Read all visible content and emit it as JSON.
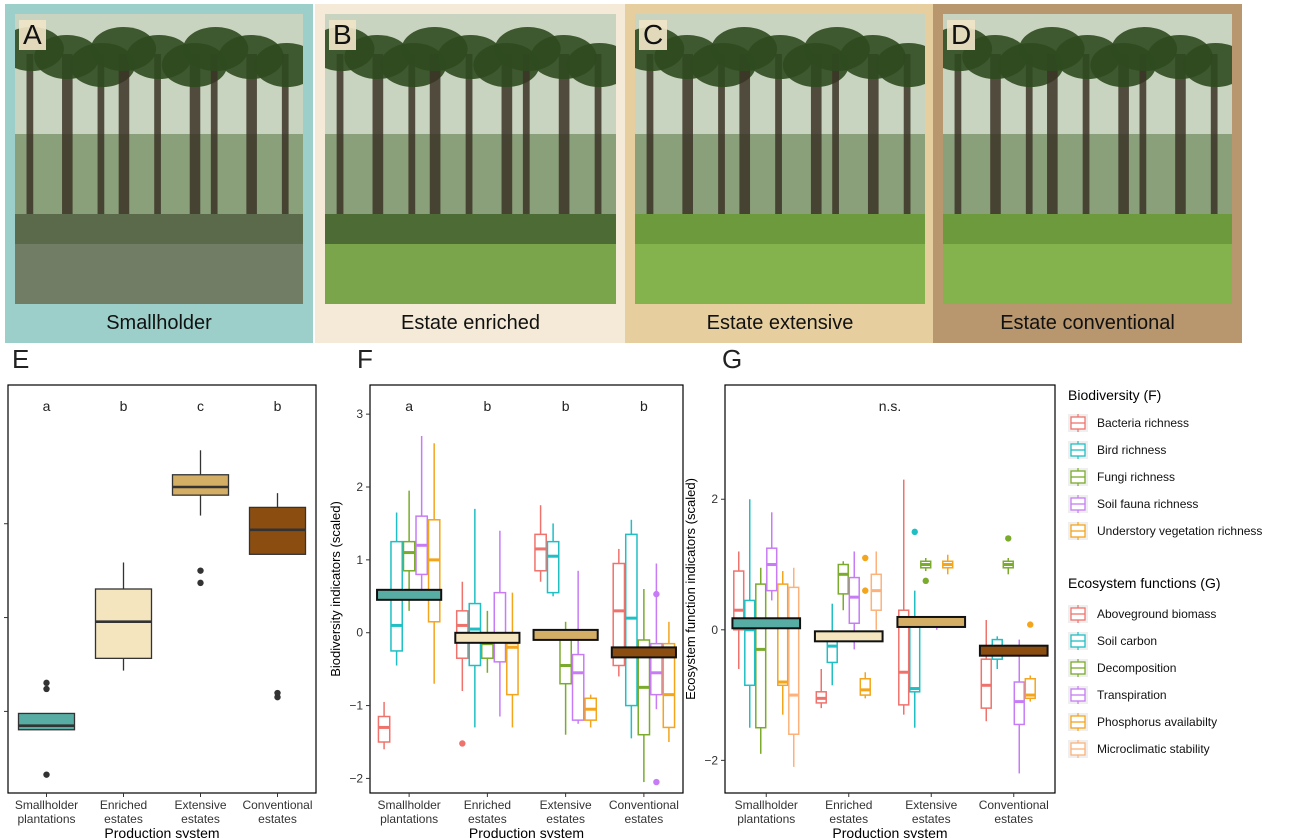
{
  "photos": [
    {
      "letter": "A",
      "caption": "Smallholder",
      "frame": "#9dcfca",
      "tone": "water"
    },
    {
      "letter": "B",
      "caption": "Estate enriched",
      "frame": "#f4ead7",
      "tone": "forest"
    },
    {
      "letter": "C",
      "caption": "Estate extensive",
      "frame": "#e6ce9f",
      "tone": "grass"
    },
    {
      "letter": "D",
      "caption": "Estate conventional",
      "frame": "#b8966e",
      "tone": "grass"
    }
  ],
  "chart_data": [
    {
      "type": "box",
      "panel": "E",
      "title": "",
      "xlabel": "Production system",
      "ylabel": "",
      "ylim": [
        0,
        10
      ],
      "categories": [
        "Smallholder\nplantations",
        "Enriched\nestates",
        "Extensive\nestates",
        "Conventional\nestates"
      ],
      "significance": [
        "a",
        "b",
        "c",
        "b"
      ],
      "boxes": [
        {
          "low": 1.55,
          "q1": 1.55,
          "median": 1.65,
          "q3": 1.95,
          "high": 1.95,
          "outliers": [
            0.45,
            2.55,
            2.7
          ],
          "color": "#57aca3"
        },
        {
          "low": 3.0,
          "q1": 3.3,
          "median": 4.2,
          "q3": 5.0,
          "high": 5.65,
          "outliers": [],
          "color": "#f4e5bf"
        },
        {
          "low": 6.8,
          "q1": 7.3,
          "median": 7.5,
          "q3": 7.8,
          "high": 8.4,
          "outliers": [
            5.15,
            5.45
          ],
          "color": "#d4ae64"
        },
        {
          "low": 5.85,
          "q1": 5.85,
          "median": 6.45,
          "q3": 7.0,
          "high": 7.35,
          "outliers": [
            2.35,
            2.45
          ],
          "color": "#8b4e10"
        }
      ]
    },
    {
      "type": "box",
      "panel": "F",
      "title": "",
      "xlabel": "Production system",
      "ylabel": "Biodiversity indicators (scaled)",
      "ylim": [
        -2.2,
        3.4
      ],
      "yticks": [
        -2,
        -1,
        0,
        1,
        2,
        3
      ],
      "categories": [
        "Smallholder\nplantations",
        "Enriched\nestates",
        "Extensive\nestates",
        "Conventional\nestates"
      ],
      "significance": [
        "a",
        "b",
        "b",
        "b"
      ],
      "means": [
        0.52,
        -0.07,
        -0.03,
        -0.27
      ],
      "mean_colors": [
        "#57aca3",
        "#f4e5bf",
        "#d4ae64",
        "#8b4e10"
      ],
      "series": [
        {
          "name": "Bacteria richness",
          "color": "#f0726c",
          "boxes": [
            {
              "low": -1.6,
              "q1": -1.5,
              "median": -1.3,
              "q3": -1.15,
              "high": -0.95,
              "outliers": []
            },
            {
              "low": -0.8,
              "q1": -0.35,
              "median": 0.1,
              "q3": 0.3,
              "high": 0.7,
              "outliers": [
                -1.52
              ]
            },
            {
              "low": 0.7,
              "q1": 0.85,
              "median": 1.15,
              "q3": 1.35,
              "high": 1.75,
              "outliers": []
            },
            {
              "low": -0.6,
              "q1": -0.45,
              "median": 0.3,
              "q3": 0.95,
              "high": 1.15,
              "outliers": []
            }
          ]
        },
        {
          "name": "Bird richness",
          "color": "#1fbfc4",
          "boxes": [
            {
              "low": -0.45,
              "q1": -0.25,
              "median": 0.1,
              "q3": 1.25,
              "high": 1.65,
              "outliers": []
            },
            {
              "low": -1.3,
              "q1": -0.45,
              "median": 0.05,
              "q3": 0.4,
              "high": 1.7,
              "outliers": []
            },
            {
              "low": 0.5,
              "q1": 0.55,
              "median": 1.05,
              "q3": 1.25,
              "high": 1.5,
              "outliers": []
            },
            {
              "low": -1.45,
              "q1": -1.0,
              "median": 0.2,
              "q3": 1.35,
              "high": 1.55,
              "outliers": []
            }
          ]
        },
        {
          "name": "Fungi richness",
          "color": "#7aab2c",
          "boxes": [
            {
              "low": 0.3,
              "q1": 0.85,
              "median": 1.1,
              "q3": 1.25,
              "high": 1.95,
              "outliers": []
            },
            {
              "low": -0.55,
              "q1": -0.35,
              "median": -0.15,
              "q3": -0.05,
              "high": 0.3,
              "outliers": []
            },
            {
              "low": -1.4,
              "q1": -0.7,
              "median": -0.45,
              "q3": -0.05,
              "high": 0.15,
              "outliers": []
            },
            {
              "low": -2.05,
              "q1": -1.4,
              "median": -0.75,
              "q3": -0.1,
              "high": 0.6,
              "outliers": []
            }
          ]
        },
        {
          "name": "Soil fauna richness",
          "color": "#c77cf5",
          "boxes": [
            {
              "low": 0.45,
              "q1": 0.8,
              "median": 1.2,
              "q3": 1.6,
              "high": 2.7,
              "outliers": []
            },
            {
              "low": -1.15,
              "q1": -0.4,
              "median": -0.05,
              "q3": 0.55,
              "high": 1.4,
              "outliers": []
            },
            {
              "low": -1.25,
              "q1": -1.2,
              "median": -0.55,
              "q3": -0.3,
              "high": 0.85,
              "outliers": []
            },
            {
              "low": -1.05,
              "q1": -0.85,
              "median": -0.55,
              "q3": -0.15,
              "high": 0.95,
              "outliers": [
                0.53,
                -2.05
              ]
            }
          ]
        },
        {
          "name": "Understory vegetation richness",
          "color": "#f3a51c",
          "boxes": [
            {
              "low": -0.7,
              "q1": 0.15,
              "median": 1.0,
              "q3": 1.55,
              "high": 2.6,
              "outliers": []
            },
            {
              "low": -1.3,
              "q1": -0.85,
              "median": -0.2,
              "q3": -0.15,
              "high": 0.55,
              "outliers": []
            },
            {
              "low": -1.3,
              "q1": -1.2,
              "median": -1.05,
              "q3": -0.9,
              "high": -0.85,
              "outliers": []
            },
            {
              "low": -1.5,
              "q1": -1.3,
              "median": -0.85,
              "q3": -0.15,
              "high": 0.15,
              "outliers": []
            }
          ]
        }
      ]
    },
    {
      "type": "box",
      "panel": "G",
      "title": "",
      "xlabel": "Production system",
      "ylabel": "Ecosystem function indicators (scaled)",
      "ylim": [
        -2.5,
        3.75
      ],
      "yticks": [
        -2,
        0,
        2
      ],
      "categories": [
        "Smallholder\nplantations",
        "Enriched\nestates",
        "Extensive\nestates",
        "Conventional\nestates"
      ],
      "significance": [
        "n.s."
      ],
      "means": [
        0.1,
        -0.1,
        0.12,
        -0.32
      ],
      "mean_colors": [
        "#57aca3",
        "#f4e5bf",
        "#d4ae64",
        "#8b4e10"
      ],
      "series": [
        {
          "name": "Aboveground biomass",
          "color": "#f0726c",
          "boxes": [
            {
              "low": -0.6,
              "q1": 0.0,
              "median": 0.3,
              "q3": 0.9,
              "high": 1.2,
              "outliers": []
            },
            {
              "low": -1.2,
              "q1": -1.12,
              "median": -1.05,
              "q3": -0.95,
              "high": -0.6,
              "outliers": []
            },
            {
              "low": -1.3,
              "q1": -1.15,
              "median": -0.65,
              "q3": 0.3,
              "high": 2.3,
              "outliers": []
            },
            {
              "low": -1.4,
              "q1": -1.2,
              "median": -0.85,
              "q3": -0.45,
              "high": 0.15,
              "outliers": []
            }
          ]
        },
        {
          "name": "Soil carbon",
          "color": "#1fbfc4",
          "boxes": [
            {
              "low": -1.5,
              "q1": -0.85,
              "median": 0.0,
              "q3": 0.45,
              "high": 2.0,
              "outliers": []
            },
            {
              "low": -0.85,
              "q1": -0.5,
              "median": -0.25,
              "q3": -0.05,
              "high": 0.4,
              "outliers": []
            },
            {
              "low": -1.5,
              "q1": -0.95,
              "median": -0.9,
              "q3": 0.1,
              "high": 0.6,
              "outliers": [
                1.5
              ]
            },
            {
              "low": -0.6,
              "q1": -0.45,
              "median": -0.3,
              "q3": -0.15,
              "high": -0.1,
              "outliers": []
            }
          ]
        },
        {
          "name": "Decomposition",
          "color": "#7aab2c",
          "boxes": [
            {
              "low": -1.9,
              "q1": -1.5,
              "median": -0.3,
              "q3": 0.7,
              "high": 0.95,
              "outliers": []
            },
            {
              "low": 0.3,
              "q1": 0.55,
              "median": 0.85,
              "q3": 1.0,
              "high": 1.05,
              "outliers": []
            },
            {
              "low": 0.9,
              "q1": 0.95,
              "median": 1.0,
              "q3": 1.05,
              "high": 1.1,
              "outliers": [
                0.75
              ]
            },
            {
              "low": 0.85,
              "q1": 0.95,
              "median": 1.0,
              "q3": 1.05,
              "high": 1.1,
              "outliers": [
                1.4
              ]
            }
          ]
        },
        {
          "name": "Transpiration",
          "color": "#c77cf5",
          "boxes": [
            {
              "low": 0.45,
              "q1": 0.6,
              "median": 1.0,
              "q3": 1.25,
              "high": 1.8,
              "outliers": []
            },
            {
              "low": -0.3,
              "q1": 0.1,
              "median": 0.5,
              "q3": 0.8,
              "high": 1.2,
              "outliers": []
            },
            {
              "low": 0.0,
              "q1": 0.05,
              "median": 0.1,
              "q3": 0.15,
              "high": 0.2,
              "outliers": []
            },
            {
              "low": -2.2,
              "q1": -1.45,
              "median": -1.1,
              "q3": -0.8,
              "high": -0.15,
              "outliers": []
            }
          ]
        },
        {
          "name": "Phosphorus availabilty",
          "color": "#f3a51c",
          "boxes": [
            {
              "low": -1.3,
              "q1": -0.85,
              "median": -0.8,
              "q3": 0.7,
              "high": 0.9,
              "outliers": []
            },
            {
              "low": -1.05,
              "q1": -1.0,
              "median": -0.92,
              "q3": -0.75,
              "high": -0.65,
              "outliers": [
                1.1,
                0.6
              ]
            },
            {
              "low": 0.85,
              "q1": 0.95,
              "median": 1.0,
              "q3": 1.05,
              "high": 1.15,
              "outliers": []
            },
            {
              "low": -1.1,
              "q1": -1.05,
              "median": -1.0,
              "q3": -0.75,
              "high": -0.7,
              "outliers": [
                0.08
              ]
            }
          ]
        },
        {
          "name": "Microclimatic stability",
          "color": "#fcb27a",
          "boxes": [
            {
              "low": -2.1,
              "q1": -1.6,
              "median": -1.0,
              "q3": 0.65,
              "high": 0.95,
              "outliers": []
            },
            {
              "low": 0.0,
              "q1": 0.3,
              "median": 0.6,
              "q3": 0.85,
              "high": 1.2,
              "outliers": []
            },
            {
              "low": null,
              "q1": null,
              "median": null,
              "q3": null,
              "high": null,
              "outliers": []
            },
            {
              "low": null,
              "q1": null,
              "median": null,
              "q3": null,
              "high": null,
              "outliers": []
            }
          ]
        }
      ]
    }
  ],
  "legend": {
    "biodiversity_title": "Biodiversity (F)",
    "ecosystem_title": "Ecosystem functions (G)"
  },
  "panel_letters": {
    "E": "E",
    "F": "F",
    "G": "G"
  }
}
